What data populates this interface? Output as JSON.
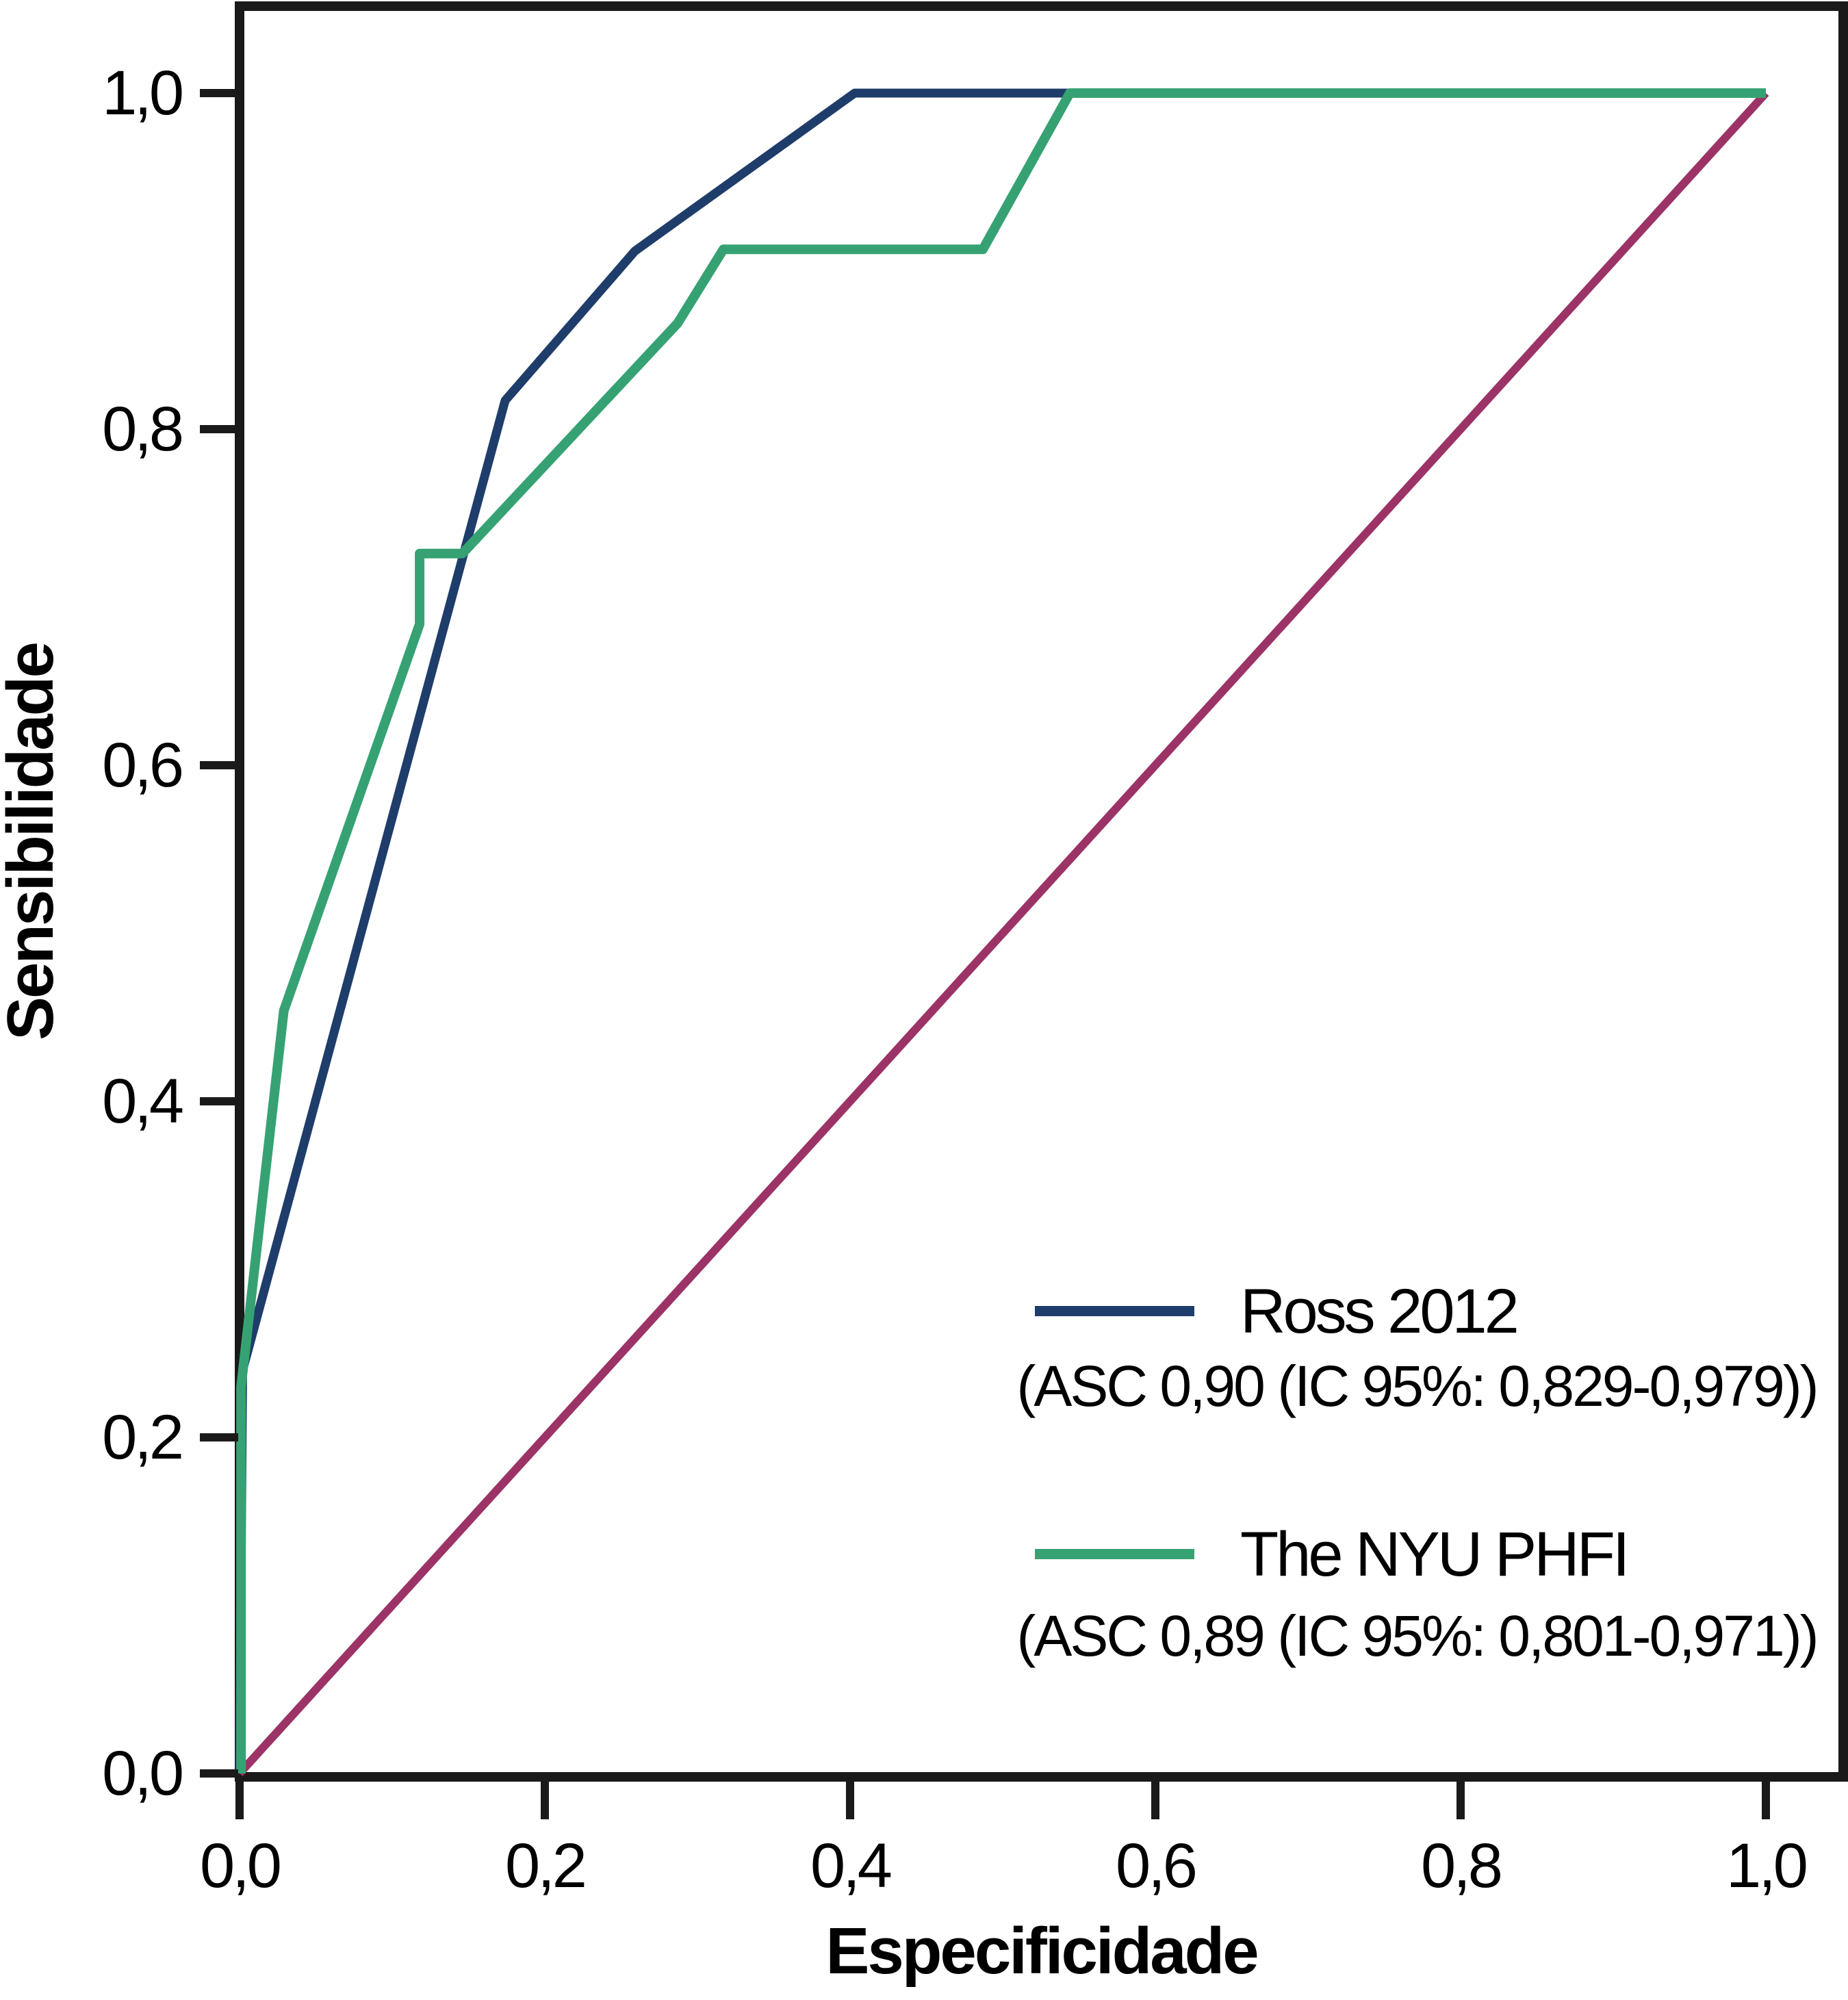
{
  "figure": {
    "background": "#ffffff",
    "frame_color": "#1a1a1a"
  },
  "chart_data": {
    "type": "line",
    "subtype": "roc-curve",
    "title": "",
    "xlabel": "Especificidade",
    "ylabel": "Sensibilidade",
    "xlim": [
      0,
      1
    ],
    "ylim": [
      0,
      1
    ],
    "x_ticks": [
      "0,0",
      "0,2",
      "0,4",
      "0,6",
      "0,8",
      "1,0"
    ],
    "y_ticks": [
      "0,0",
      "0,2",
      "0,4",
      "0,6",
      "0,8",
      "1,0"
    ],
    "grid": false,
    "legend_position": "lower right",
    "series": [
      {
        "name": "Ross 2012",
        "caption": "(ASC 0,90 (IC 95%: 0,829-0,979))",
        "auc": "0,90",
        "ci95": "0,829-0,979",
        "color": "#1f3d6a",
        "stroke_width": 13,
        "points": [
          [
            0.0,
            0.0
          ],
          [
            0.002,
            0.24
          ],
          [
            0.174,
            0.817
          ],
          [
            0.259,
            0.906
          ],
          [
            0.403,
            1.0
          ],
          [
            1.0,
            1.0
          ]
        ]
      },
      {
        "name": "The NYU PHFI",
        "caption": "(ASC 0,89 (IC 95%: 0,801-0,971))",
        "auc": "0,89",
        "ci95": "0,801-0,971",
        "color": "#36a273",
        "stroke_width": 14,
        "points": [
          [
            0.001,
            0.0
          ],
          [
            0.001,
            0.23
          ],
          [
            0.029,
            0.454
          ],
          [
            0.118,
            0.684
          ],
          [
            0.118,
            0.726
          ],
          [
            0.146,
            0.726
          ],
          [
            0.287,
            0.863
          ],
          [
            0.317,
            0.907
          ],
          [
            0.487,
            0.907
          ],
          [
            0.544,
            1.0
          ],
          [
            1.0,
            1.0
          ]
        ]
      },
      {
        "name": "reference-diagonal",
        "caption": "",
        "color": "#9c3367",
        "stroke_width": 12,
        "points": [
          [
            0.0,
            0.0
          ],
          [
            1.0,
            1.0
          ]
        ]
      }
    ]
  }
}
